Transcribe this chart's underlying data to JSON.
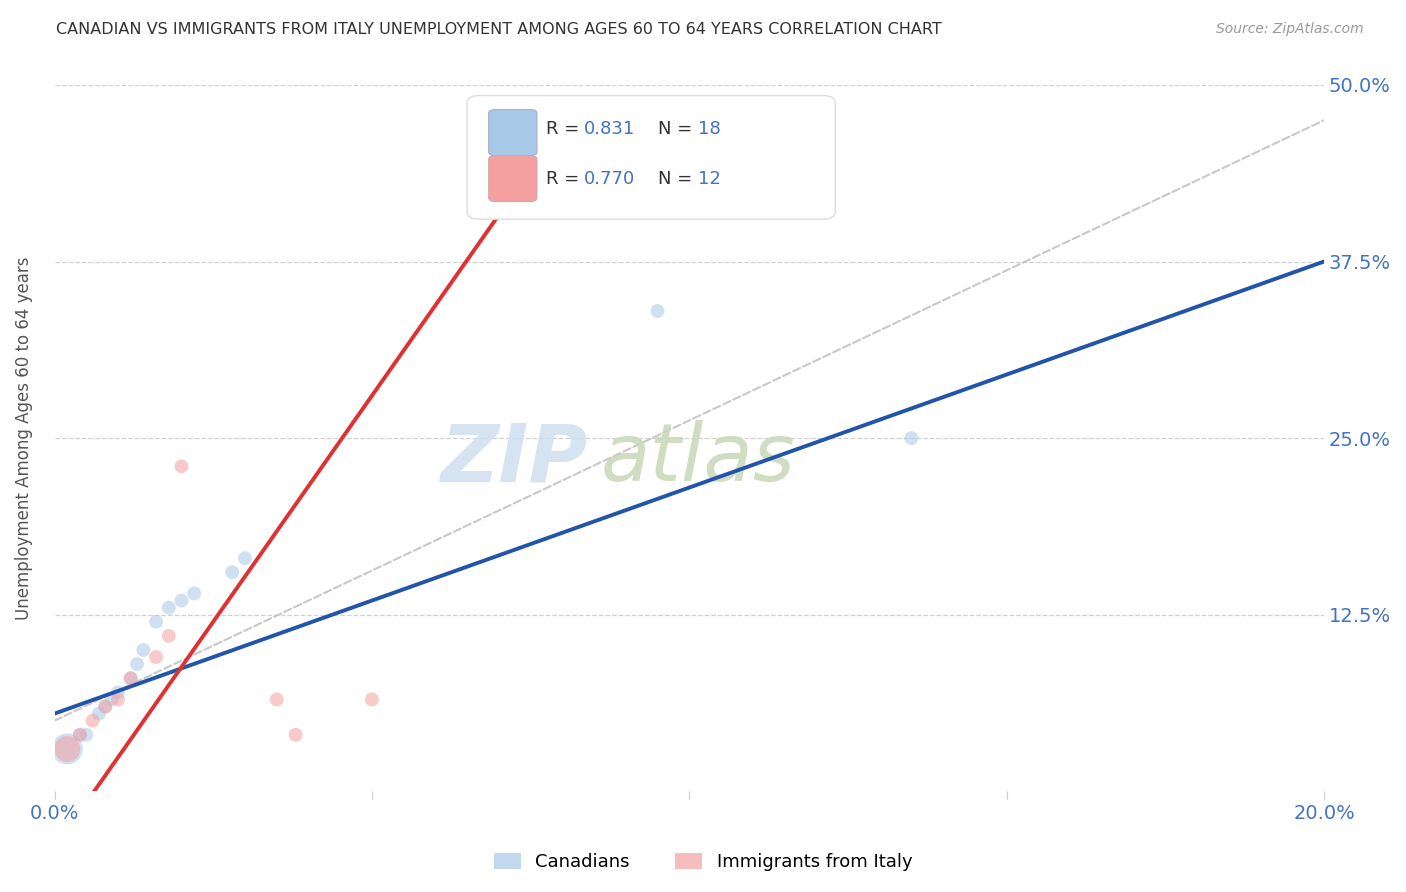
{
  "title": "CANADIAN VS IMMIGRANTS FROM ITALY UNEMPLOYMENT AMONG AGES 60 TO 64 YEARS CORRELATION CHART",
  "source": "Source: ZipAtlas.com",
  "ylabel": "Unemployment Among Ages 60 to 64 years",
  "xlim": [
    0,
    0.2
  ],
  "ylim": [
    0,
    0.5
  ],
  "xtick_positions": [
    0.0,
    0.05,
    0.1,
    0.15,
    0.2
  ],
  "xticklabels": [
    "0.0%",
    "",
    "",
    "",
    "20.0%"
  ],
  "ytick_positions": [
    0.0,
    0.125,
    0.25,
    0.375,
    0.5
  ],
  "yticklabels": [
    "",
    "12.5%",
    "25.0%",
    "37.5%",
    "50.0%"
  ],
  "canadians_x": [
    0.002,
    0.004,
    0.005,
    0.007,
    0.008,
    0.009,
    0.01,
    0.012,
    0.013,
    0.014,
    0.016,
    0.018,
    0.02,
    0.022,
    0.028,
    0.03,
    0.095,
    0.135
  ],
  "canadians_y": [
    0.03,
    0.04,
    0.04,
    0.055,
    0.06,
    0.065,
    0.07,
    0.08,
    0.09,
    0.1,
    0.12,
    0.13,
    0.135,
    0.14,
    0.155,
    0.165,
    0.34,
    0.25
  ],
  "canadians_size": [
    500,
    100,
    100,
    100,
    100,
    100,
    100,
    100,
    100,
    100,
    100,
    100,
    100,
    100,
    100,
    100,
    100,
    100
  ],
  "italy_x": [
    0.002,
    0.004,
    0.006,
    0.008,
    0.01,
    0.012,
    0.016,
    0.018,
    0.02,
    0.035,
    0.038,
    0.05
  ],
  "italy_y": [
    0.03,
    0.04,
    0.05,
    0.06,
    0.065,
    0.08,
    0.095,
    0.11,
    0.23,
    0.065,
    0.04,
    0.065
  ],
  "italy_size": [
    350,
    100,
    100,
    100,
    100,
    100,
    100,
    100,
    100,
    100,
    100,
    100
  ],
  "canada_R": 0.831,
  "canada_N": 18,
  "italy_R": 0.77,
  "italy_N": 12,
  "blue_scatter_color": "#a8c8e8",
  "pink_scatter_color": "#f4a0a0",
  "blue_line_color": "#2255aa",
  "pink_line_color": "#e03030",
  "diag_line_color": "#bbbbbb",
  "background_color": "#ffffff",
  "title_color": "#333333",
  "axis_label_color": "#555555",
  "tick_label_color": "#4472c4",
  "grid_color": "#cccccc",
  "legend_R_color": "#4472c4",
  "legend_N_color": "#4472c4",
  "watermark_zip_color": "#cfe0f0",
  "watermark_atlas_color": "#c8d8b8"
}
